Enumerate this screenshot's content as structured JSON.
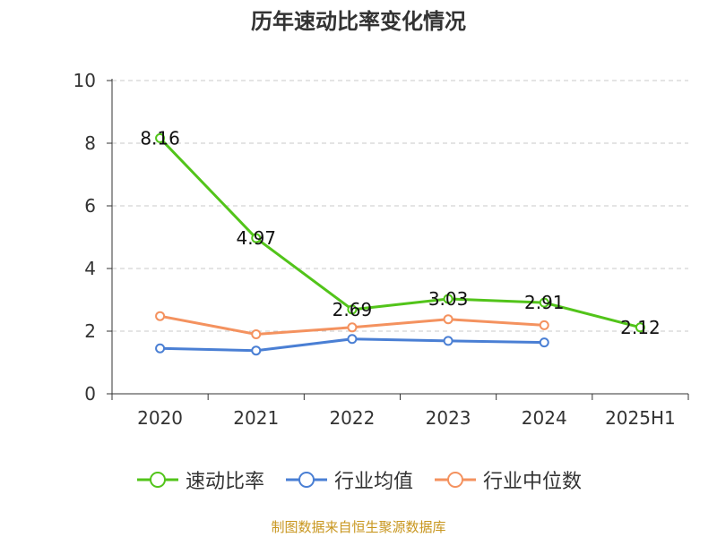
{
  "chart_data": {
    "type": "line",
    "title": "历年速动比率变化情况",
    "categories": [
      "2020",
      "2021",
      "2022",
      "2023",
      "2024",
      "2025H1"
    ],
    "ylim": [
      0,
      10
    ],
    "yticks": [
      0,
      2,
      4,
      6,
      8,
      10
    ],
    "grid": true,
    "legend_position": "bottom",
    "series": [
      {
        "name": "速动比率",
        "color": "#52c41a",
        "values": [
          8.16,
          4.97,
          2.69,
          3.03,
          2.91,
          2.12
        ],
        "data_labels": [
          "8.16",
          "4.97",
          "2.69",
          "3.03",
          "2.91",
          "2.12"
        ]
      },
      {
        "name": "行业均值",
        "color": "#4a7fd4",
        "values": [
          1.45,
          1.38,
          1.75,
          1.69,
          1.64,
          null
        ]
      },
      {
        "name": "行业中位数",
        "color": "#f4925f",
        "values": [
          2.48,
          1.9,
          2.12,
          2.38,
          2.19,
          null
        ]
      }
    ]
  },
  "source_note": "制图数据来自恒生聚源数据库"
}
